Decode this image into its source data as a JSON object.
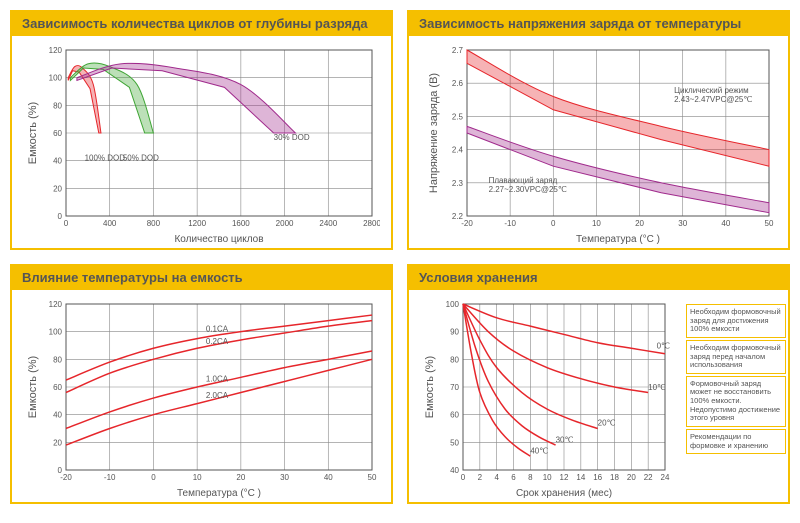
{
  "colors": {
    "border": "#f5bf00",
    "red": "#e6262b",
    "magenta": "#a02a8c",
    "green": "#3fa535",
    "grid": "#888888"
  },
  "panels": {
    "tl": {
      "title": "Зависимость количества циклов от глубины разряда",
      "xlabel": "Количество циклов",
      "ylabel": "Емкость (%)",
      "xlim": [
        0,
        2800
      ],
      "xtick_step": 400,
      "ylim": [
        0,
        120
      ],
      "ytick_step": 20,
      "bands": [
        {
          "color": "#e6262b",
          "points_upper": [
            [
              20,
              100
            ],
            [
              80,
              108
            ],
            [
              150,
              107
            ],
            [
              250,
              95
            ],
            [
              320,
              60
            ]
          ],
          "points_lower": [
            [
              20,
              98
            ],
            [
              60,
              105
            ],
            [
              120,
              104
            ],
            [
              220,
              92
            ],
            [
              300,
              60
            ]
          ],
          "label": "100% DOD",
          "lx": 170,
          "ly": 40
        },
        {
          "color": "#3fa535",
          "points_upper": [
            [
              40,
              100
            ],
            [
              200,
              110
            ],
            [
              400,
              108
            ],
            [
              650,
              95
            ],
            [
              800,
              60
            ]
          ],
          "points_lower": [
            [
              40,
              98
            ],
            [
              160,
              107
            ],
            [
              340,
              106
            ],
            [
              580,
              93
            ],
            [
              720,
              60
            ]
          ],
          "label": "50% DOD",
          "lx": 520,
          "ly": 40
        },
        {
          "color": "#a02a8c",
          "points_upper": [
            [
              100,
              100
            ],
            [
              500,
              110
            ],
            [
              1000,
              107
            ],
            [
              1600,
              95
            ],
            [
              2100,
              60
            ]
          ],
          "points_lower": [
            [
              100,
              98
            ],
            [
              420,
              107
            ],
            [
              880,
              105
            ],
            [
              1450,
              93
            ],
            [
              1900,
              60
            ]
          ],
          "label": "30% DOD",
          "lx": 1900,
          "ly": 55
        }
      ]
    },
    "tr": {
      "title": "Зависимость напряжения заряда от температуры",
      "xlabel": "Температура (°C )",
      "ylabel": "Напряжение заряда (В)",
      "xlim": [
        -20,
        50
      ],
      "xtick_step": 10,
      "ylim": [
        2.2,
        2.7
      ],
      "ytick_step": 0.1,
      "bands": [
        {
          "color": "#e6262b",
          "points_upper": [
            [
              -20,
              2.7
            ],
            [
              0,
              2.56
            ],
            [
              25,
              2.47
            ],
            [
              50,
              2.4
            ]
          ],
          "points_lower": [
            [
              -20,
              2.66
            ],
            [
              0,
              2.52
            ],
            [
              25,
              2.43
            ],
            [
              50,
              2.35
            ]
          ],
          "label": "Циклический режим",
          "sub": "2.43~2.47VPC@25℃",
          "lx": 28,
          "ly": 2.57
        },
        {
          "color": "#a02a8c",
          "points_upper": [
            [
              -20,
              2.47
            ],
            [
              0,
              2.38
            ],
            [
              25,
              2.3
            ],
            [
              50,
              2.24
            ]
          ],
          "points_lower": [
            [
              -20,
              2.45
            ],
            [
              0,
              2.35
            ],
            [
              25,
              2.27
            ],
            [
              50,
              2.21
            ]
          ],
          "label": "Плавающий заряд",
          "sub": "2.27~2.30VPC@25℃",
          "lx": -15,
          "ly": 2.3
        }
      ]
    },
    "bl": {
      "title": "Влияние температуры на емкость",
      "xlabel": "Температура (°C )",
      "ylabel": "Емкость (%)",
      "xlim": [
        -20,
        50
      ],
      "xtick_step": 10,
      "ylim": [
        0,
        120
      ],
      "ytick_step": 20,
      "curves": [
        {
          "label": "0.1CA",
          "points": [
            [
              -20,
              65
            ],
            [
              -10,
              78
            ],
            [
              0,
              88
            ],
            [
              10,
              95
            ],
            [
              20,
              100
            ],
            [
              30,
              104
            ],
            [
              40,
              108
            ],
            [
              50,
              112
            ]
          ],
          "lx": 12,
          "ly": 100
        },
        {
          "label": "0.2CA",
          "points": [
            [
              -20,
              56
            ],
            [
              -10,
              70
            ],
            [
              0,
              80
            ],
            [
              10,
              88
            ],
            [
              20,
              94
            ],
            [
              30,
              99
            ],
            [
              40,
              104
            ],
            [
              50,
              108
            ]
          ],
          "lx": 12,
          "ly": 91
        },
        {
          "label": "1.0CA",
          "points": [
            [
              -20,
              30
            ],
            [
              -10,
              42
            ],
            [
              0,
              52
            ],
            [
              10,
              60
            ],
            [
              20,
              67
            ],
            [
              30,
              74
            ],
            [
              40,
              80
            ],
            [
              50,
              86
            ]
          ],
          "lx": 12,
          "ly": 64
        },
        {
          "label": "2.0CA",
          "points": [
            [
              -20,
              18
            ],
            [
              -10,
              30
            ],
            [
              0,
              40
            ],
            [
              10,
              48
            ],
            [
              20,
              56
            ],
            [
              30,
              64
            ],
            [
              40,
              72
            ],
            [
              50,
              80
            ]
          ],
          "lx": 12,
          "ly": 52
        }
      ]
    },
    "br": {
      "title": "Условия хранения",
      "xlabel": "Срок хранения (мес)",
      "ylabel": "Емкость (%)",
      "xlim": [
        0,
        24
      ],
      "xtick_step": 2,
      "ylim": [
        40,
        100
      ],
      "ytick_step": 10,
      "curves": [
        {
          "label": "0℃",
          "points": [
            [
              0,
              100
            ],
            [
              4,
              95
            ],
            [
              8,
              92
            ],
            [
              12,
              89
            ],
            [
              16,
              86
            ],
            [
              20,
              84
            ],
            [
              24,
              82
            ]
          ],
          "lx": 23.0,
          "ly": 84
        },
        {
          "label": "10℃",
          "points": [
            [
              0,
              100
            ],
            [
              3,
              90
            ],
            [
              6,
              83
            ],
            [
              10,
              77
            ],
            [
              14,
              73
            ],
            [
              18,
              70
            ],
            [
              22,
              68
            ]
          ],
          "lx": 22.0,
          "ly": 69
        },
        {
          "label": "20℃",
          "points": [
            [
              0,
              100
            ],
            [
              2,
              87
            ],
            [
              4,
              77
            ],
            [
              7,
              68
            ],
            [
              10,
              62
            ],
            [
              13,
              58
            ],
            [
              16,
              55
            ]
          ],
          "lx": 16.0,
          "ly": 56
        },
        {
          "label": "30℃",
          "points": [
            [
              0,
              100
            ],
            [
              1.5,
              84
            ],
            [
              3,
              72
            ],
            [
              5,
              62
            ],
            [
              7,
              56
            ],
            [
              9,
              52
            ],
            [
              11,
              49
            ]
          ],
          "lx": 11.0,
          "ly": 50
        },
        {
          "label": "40℃",
          "points": [
            [
              0,
              100
            ],
            [
              1,
              82
            ],
            [
              2,
              68
            ],
            [
              3.5,
              58
            ],
            [
              5,
              52
            ],
            [
              6.5,
              48
            ],
            [
              8,
              45
            ]
          ],
          "lx": 8.0,
          "ly": 46
        }
      ],
      "notes": [
        "Необходим формо­вочный заряд для достижения 100% емкости",
        "Необходим формо­вочный заряд перед началом использования",
        "Формовочный заряд может не восстано­вить 100% емкости. Недопустимо до­стижение этого уровня",
        "Рекомендации по формовке и хране­нию"
      ]
    }
  }
}
